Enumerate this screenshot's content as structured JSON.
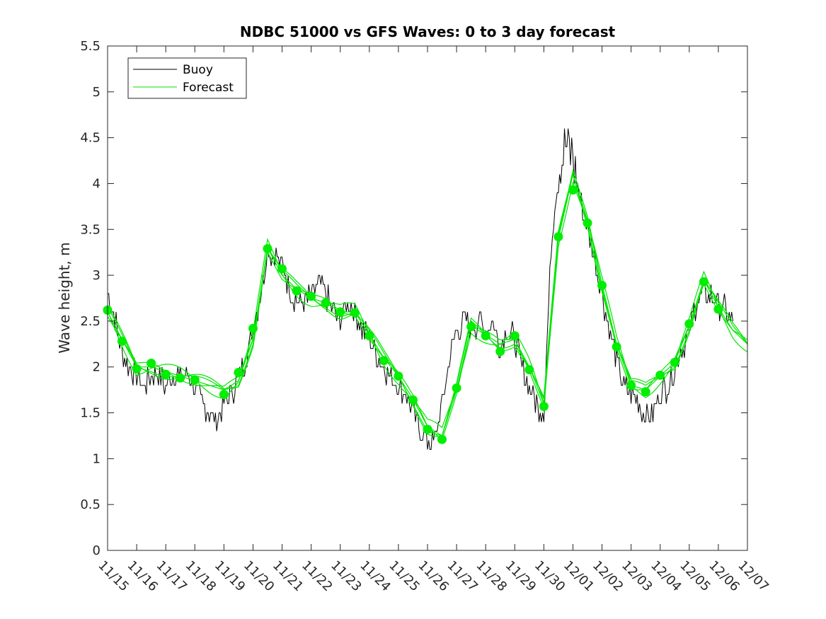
{
  "chart_data": {
    "type": "line",
    "title": "NDBC 51000 vs GFS Waves: 0 to 3 day forecast",
    "xlabel": "",
    "ylabel": "Wave height, m",
    "ylim": [
      0,
      5.5
    ],
    "yticks": [
      0,
      0.5,
      1,
      1.5,
      2,
      2.5,
      3,
      3.5,
      4,
      4.5,
      5,
      5.5
    ],
    "ytick_labels": [
      "0",
      "0.5",
      "1",
      "1.5",
      "2",
      "2.5",
      "3",
      "3.5",
      "4",
      "4.5",
      "5",
      "5.5"
    ],
    "xlim": [
      0,
      22
    ],
    "xticks": [
      0,
      1,
      2,
      3,
      4,
      5,
      6,
      7,
      8,
      9,
      10,
      11,
      12,
      13,
      14,
      15,
      16,
      17,
      18,
      19,
      20,
      21,
      22
    ],
    "xtick_labels": [
      "11/15",
      "11/16",
      "11/17",
      "11/18",
      "11/19",
      "11/20",
      "11/21",
      "11/22",
      "11/23",
      "11/24",
      "11/25",
      "11/26",
      "11/27",
      "11/28",
      "11/29",
      "11/30",
      "12/01",
      "12/02",
      "12/03",
      "12/04",
      "12/05",
      "12/06",
      "12/07"
    ],
    "legend": {
      "position": "top-left",
      "entries": [
        {
          "label": "Buoy",
          "color": "#000000"
        },
        {
          "label": "Forecast",
          "color": "#00e600"
        }
      ]
    },
    "colors": {
      "buoy": "#000000",
      "forecast": "#00e600",
      "markers": "#00ee00"
    },
    "series": [
      {
        "name": "Buoy",
        "x": [
          0,
          0.25,
          0.5,
          0.75,
          1,
          1.25,
          1.5,
          1.75,
          2,
          2.25,
          2.5,
          2.75,
          3,
          3.25,
          3.5,
          3.75,
          4,
          4.25,
          4.5,
          4.75,
          5,
          5.25,
          5.5,
          5.75,
          6,
          6.25,
          6.5,
          6.75,
          7,
          7.25,
          7.5,
          7.75,
          8,
          8.25,
          8.5,
          8.75,
          9,
          9.25,
          9.5,
          9.75,
          10,
          10.25,
          10.5,
          10.75,
          11,
          11.25,
          11.5,
          11.75,
          12,
          12.25,
          12.5,
          12.75,
          13,
          13.25,
          13.5,
          13.75,
          14,
          14.25,
          14.5,
          14.75,
          15,
          15.25,
          15.5,
          15.75,
          16,
          16.25,
          16.5,
          16.75,
          17,
          17.25,
          17.5,
          17.75,
          18,
          18.25,
          18.5,
          18.75,
          19,
          19.25,
          19.5,
          19.75,
          20,
          20.25,
          20.5,
          20.75,
          21,
          21.25,
          21.5
        ],
        "values": [
          2.8,
          2.5,
          2.2,
          2.0,
          1.9,
          1.8,
          1.9,
          1.9,
          1.8,
          1.9,
          1.9,
          1.9,
          1.8,
          1.6,
          1.5,
          1.4,
          1.6,
          1.7,
          1.9,
          2.1,
          2.4,
          2.8,
          3.3,
          3.2,
          3.1,
          2.9,
          2.7,
          2.7,
          2.8,
          2.9,
          2.8,
          2.6,
          2.5,
          2.7,
          2.6,
          2.4,
          2.3,
          2.1,
          2.0,
          1.9,
          1.8,
          1.7,
          1.5,
          1.3,
          1.2,
          1.2,
          1.6,
          2.1,
          2.4,
          2.5,
          2.4,
          2.5,
          2.4,
          2.5,
          2.2,
          2.4,
          2.3,
          2.0,
          1.8,
          1.6,
          1.5,
          3.3,
          4.2,
          4.4,
          4.3,
          3.8,
          3.5,
          3.2,
          2.8,
          2.4,
          2.1,
          1.8,
          1.7,
          1.6,
          1.5,
          1.5,
          1.7,
          1.8,
          2.0,
          2.2,
          2.4,
          2.7,
          2.8,
          2.8,
          2.7,
          2.6,
          2.5
        ]
      },
      {
        "name": "Forecast",
        "x": [
          0,
          0.5,
          1,
          1.5,
          2,
          2.5,
          3,
          3.5,
          4,
          4.5,
          5,
          5.5,
          6,
          6.5,
          7,
          7.5,
          8,
          8.5,
          9,
          9.5,
          10,
          10.5,
          11,
          11.5,
          12,
          12.5,
          13,
          13.5,
          14,
          14.5,
          15,
          15.5,
          16,
          16.5,
          17,
          17.5,
          18,
          18.5,
          19,
          19.5,
          20,
          20.5,
          21,
          21.5,
          22
        ],
        "values": [
          2.6,
          2.3,
          2.0,
          2.0,
          1.95,
          1.9,
          1.85,
          1.8,
          1.75,
          1.85,
          2.3,
          3.3,
          3.0,
          2.85,
          2.75,
          2.7,
          2.6,
          2.6,
          2.35,
          2.1,
          1.9,
          1.65,
          1.35,
          1.25,
          1.75,
          2.45,
          2.35,
          2.25,
          2.3,
          2.0,
          1.6,
          3.4,
          4.1,
          3.6,
          2.9,
          2.25,
          1.8,
          1.75,
          1.9,
          2.05,
          2.45,
          2.95,
          2.65,
          2.4,
          2.25
        ]
      },
      {
        "name": "Forecast markers",
        "x": [
          0,
          0.5,
          1,
          1.5,
          2,
          2.5,
          3,
          4,
          4.5,
          5,
          5.5,
          6,
          6.5,
          7,
          7.5,
          8,
          8.5,
          9,
          9.5,
          10,
          10.5,
          11,
          11.5,
          12,
          12.5,
          13,
          13.5,
          14,
          14.5,
          15,
          15.5,
          16,
          16.5,
          17,
          17.5,
          18,
          18.5,
          19,
          19.5,
          20,
          20.5,
          21
        ],
        "values": [
          2.62,
          2.28,
          1.98,
          2.04,
          1.92,
          1.88,
          1.86,
          1.7,
          1.94,
          2.42,
          3.29,
          3.07,
          2.83,
          2.77,
          2.7,
          2.6,
          2.59,
          2.34,
          2.07,
          1.9,
          1.64,
          1.32,
          1.21,
          1.77,
          2.44,
          2.34,
          2.17,
          2.34,
          1.97,
          1.57,
          3.42,
          3.93,
          3.57,
          2.89,
          2.22,
          1.8,
          1.73,
          1.91,
          2.05,
          2.47,
          2.93,
          2.63
        ]
      }
    ]
  }
}
